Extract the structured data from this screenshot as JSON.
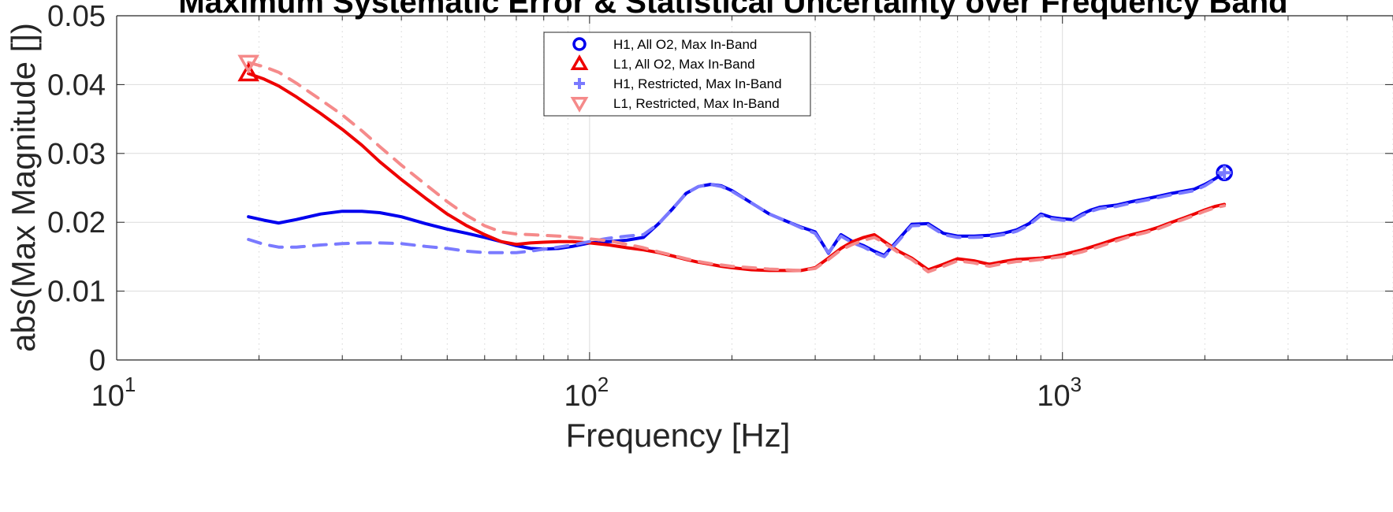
{
  "chart_data": {
    "type": "line",
    "title": "Maximum Systematic Error & Statistical Uncertainty over Frequency Band",
    "xlabel": "Frequency [Hz]",
    "ylabel": "abs(Max Magnitude [])",
    "x_scale": "log",
    "xlim": [
      10,
      5000
    ],
    "ylim": [
      0,
      0.05
    ],
    "grid": true,
    "legend_position": "top-center",
    "x_ticks": [
      {
        "value": 10,
        "base": "10",
        "exp": "1"
      },
      {
        "value": 100,
        "base": "10",
        "exp": "2"
      },
      {
        "value": 1000,
        "base": "10",
        "exp": "3"
      }
    ],
    "y_ticks": [
      {
        "value": 0,
        "label": "0"
      },
      {
        "value": 0.01,
        "label": "0.01"
      },
      {
        "value": 0.02,
        "label": "0.02"
      },
      {
        "value": 0.03,
        "label": "0.03"
      },
      {
        "value": 0.04,
        "label": "0.04"
      },
      {
        "value": 0.05,
        "label": "0.05"
      }
    ],
    "series": [
      {
        "name": "H1, All O2, Max In-Band",
        "color": "#0000ee",
        "opacity": 1,
        "dash": false,
        "marker": "circle",
        "marker_point": [
          2200,
          0.0272
        ],
        "x": [
          19,
          20.5,
          22,
          24,
          27,
          30,
          33,
          36,
          40,
          45,
          50,
          55,
          60,
          65,
          70,
          75,
          80,
          86,
          92,
          100,
          110,
          120,
          130,
          140,
          150,
          160,
          170,
          180,
          190,
          200,
          220,
          240,
          260,
          280,
          300,
          320,
          340,
          360,
          380,
          400,
          420,
          450,
          480,
          520,
          560,
          600,
          650,
          700,
          750,
          800,
          850,
          900,
          950,
          1000,
          1050,
          1100,
          1150,
          1200,
          1300,
          1400,
          1500,
          1600,
          1700,
          1800,
          1900,
          2000,
          2100,
          2200
        ],
        "y": [
          0.0208,
          0.0203,
          0.0199,
          0.0204,
          0.0212,
          0.0216,
          0.0216,
          0.0214,
          0.0208,
          0.0198,
          0.019,
          0.0184,
          0.0178,
          0.0172,
          0.0166,
          0.0162,
          0.0161,
          0.0162,
          0.0165,
          0.017,
          0.0172,
          0.0174,
          0.0178,
          0.0198,
          0.022,
          0.0242,
          0.0252,
          0.0255,
          0.0253,
          0.0246,
          0.0228,
          0.0212,
          0.0202,
          0.0193,
          0.0186,
          0.0155,
          0.0182,
          0.0172,
          0.0166,
          0.0158,
          0.0152,
          0.0175,
          0.0197,
          0.0198,
          0.0184,
          0.018,
          0.018,
          0.0181,
          0.0184,
          0.0189,
          0.0198,
          0.0212,
          0.0207,
          0.0205,
          0.0204,
          0.0212,
          0.0218,
          0.0222,
          0.0225,
          0.023,
          0.0234,
          0.0238,
          0.0242,
          0.0245,
          0.0248,
          0.0255,
          0.0263,
          0.0272
        ]
      },
      {
        "name": "L1, All O2, Max In-Band",
        "color": "#ee0000",
        "opacity": 1,
        "dash": false,
        "marker": "triangle-up",
        "marker_point": [
          19,
          0.0416
        ],
        "x": [
          19,
          20.5,
          22,
          24,
          27,
          30,
          33,
          36,
          40,
          45,
          50,
          55,
          60,
          65,
          70,
          75,
          80,
          86,
          92,
          100,
          110,
          120,
          130,
          140,
          150,
          160,
          170,
          180,
          190,
          200,
          220,
          240,
          260,
          280,
          300,
          320,
          340,
          360,
          380,
          400,
          420,
          450,
          480,
          520,
          560,
          600,
          650,
          700,
          750,
          800,
          850,
          900,
          950,
          1000,
          1100,
          1200,
          1300,
          1400,
          1500,
          1600,
          1700,
          1800,
          1900,
          2000,
          2100,
          2200
        ],
        "y": [
          0.0416,
          0.0408,
          0.0398,
          0.0382,
          0.0358,
          0.0335,
          0.0312,
          0.0288,
          0.0262,
          0.0235,
          0.0212,
          0.0195,
          0.0182,
          0.0172,
          0.0168,
          0.017,
          0.0171,
          0.0172,
          0.0172,
          0.017,
          0.0167,
          0.0163,
          0.016,
          0.0156,
          0.0151,
          0.0146,
          0.0142,
          0.0139,
          0.0136,
          0.0134,
          0.0131,
          0.013,
          0.013,
          0.013,
          0.0134,
          0.0148,
          0.0162,
          0.0172,
          0.0178,
          0.0182,
          0.0172,
          0.0158,
          0.0148,
          0.0131,
          0.0139,
          0.0147,
          0.0144,
          0.0139,
          0.0143,
          0.0146,
          0.0147,
          0.0148,
          0.015,
          0.0153,
          0.016,
          0.0168,
          0.0176,
          0.0182,
          0.0187,
          0.0193,
          0.02,
          0.0206,
          0.0212,
          0.0218,
          0.0223,
          0.0226
        ]
      },
      {
        "name": "H1, Restricted, Max In-Band",
        "color": "#7a7aff",
        "opacity": 1,
        "dash": true,
        "marker": "plus",
        "marker_point": [
          2200,
          0.0272
        ],
        "x": [
          19,
          20.5,
          22,
          24,
          27,
          30,
          33,
          36,
          40,
          45,
          50,
          55,
          60,
          65,
          70,
          75,
          80,
          86,
          92,
          100,
          110,
          120,
          130,
          140,
          150,
          160,
          170,
          180,
          190,
          200,
          220,
          240,
          260,
          280,
          300,
          320,
          340,
          360,
          380,
          400,
          420,
          450,
          480,
          520,
          560,
          600,
          650,
          700,
          750,
          800,
          850,
          900,
          950,
          1000,
          1050,
          1100,
          1150,
          1200,
          1300,
          1400,
          1500,
          1600,
          1700,
          1800,
          1900,
          2000,
          2100,
          2200
        ],
        "y": [
          0.0175,
          0.0168,
          0.0164,
          0.0164,
          0.0167,
          0.0169,
          0.017,
          0.017,
          0.0169,
          0.0165,
          0.0162,
          0.0158,
          0.0156,
          0.0156,
          0.0156,
          0.0158,
          0.0161,
          0.0164,
          0.0167,
          0.0172,
          0.0177,
          0.018,
          0.0182,
          0.0198,
          0.022,
          0.0242,
          0.0252,
          0.0255,
          0.0252,
          0.0245,
          0.0228,
          0.0212,
          0.0202,
          0.0192,
          0.0184,
          0.0156,
          0.018,
          0.017,
          0.0164,
          0.0156,
          0.015,
          0.0173,
          0.0195,
          0.0196,
          0.0182,
          0.0178,
          0.0178,
          0.0179,
          0.0182,
          0.0187,
          0.0196,
          0.021,
          0.0205,
          0.0203,
          0.0202,
          0.021,
          0.0216,
          0.022,
          0.0223,
          0.0228,
          0.0232,
          0.0236,
          0.024,
          0.0243,
          0.0246,
          0.0253,
          0.0262,
          0.0272
        ]
      },
      {
        "name": "L1, Restricted, Max In-Band",
        "color": "#f58a8a",
        "opacity": 1,
        "dash": true,
        "marker": "triangle-down",
        "marker_point": [
          19,
          0.0432
        ],
        "x": [
          19,
          20.5,
          22,
          24,
          27,
          30,
          33,
          36,
          40,
          45,
          50,
          55,
          60,
          65,
          70,
          75,
          80,
          86,
          92,
          100,
          110,
          120,
          130,
          140,
          150,
          160,
          170,
          180,
          190,
          200,
          220,
          240,
          260,
          280,
          300,
          320,
          340,
          360,
          380,
          400,
          420,
          450,
          480,
          520,
          560,
          600,
          650,
          700,
          750,
          800,
          850,
          900,
          950,
          1000,
          1100,
          1200,
          1300,
          1400,
          1500,
          1600,
          1700,
          1800,
          1900,
          2000,
          2100,
          2200
        ],
        "y": [
          0.0432,
          0.0426,
          0.0418,
          0.0402,
          0.0378,
          0.0356,
          0.0333,
          0.031,
          0.0283,
          0.0255,
          0.023,
          0.021,
          0.0195,
          0.0186,
          0.0183,
          0.0182,
          0.0181,
          0.018,
          0.0178,
          0.0176,
          0.0173,
          0.0168,
          0.0163,
          0.0157,
          0.0152,
          0.0147,
          0.0143,
          0.014,
          0.0138,
          0.0136,
          0.0134,
          0.0132,
          0.0131,
          0.013,
          0.0133,
          0.0146,
          0.016,
          0.0168,
          0.0174,
          0.0178,
          0.017,
          0.0156,
          0.0146,
          0.0128,
          0.0136,
          0.0144,
          0.0141,
          0.0136,
          0.014,
          0.0143,
          0.0144,
          0.0146,
          0.0148,
          0.015,
          0.0157,
          0.0165,
          0.0173,
          0.018,
          0.0185,
          0.0191,
          0.0198,
          0.0204,
          0.021,
          0.0216,
          0.0221,
          0.0224
        ]
      }
    ]
  }
}
